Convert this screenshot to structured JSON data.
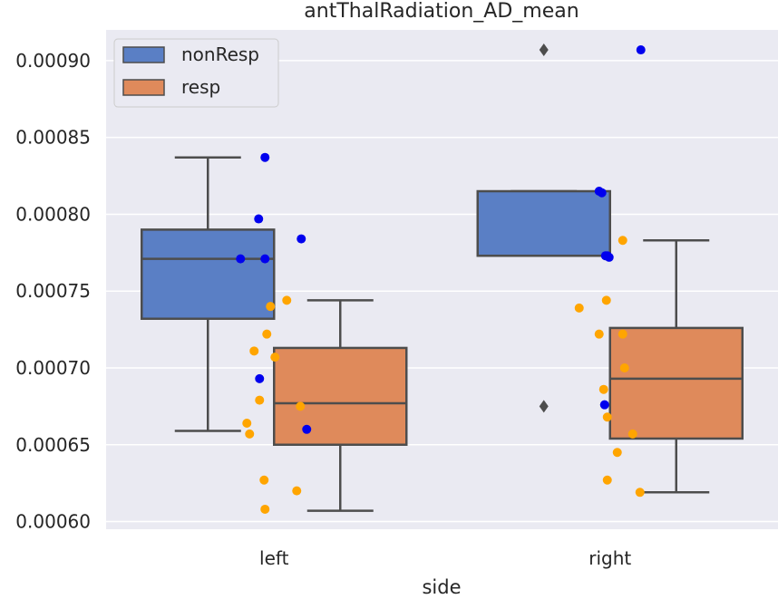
{
  "chart_data": {
    "type": "box",
    "title": "antThalRadiation_AD_mean",
    "xlabel": "side",
    "ylabel": "",
    "categories": [
      "left",
      "right"
    ],
    "ylim": [
      0.000595,
      0.00092
    ],
    "yticks": [
      0.0006,
      0.00065,
      0.0007,
      0.00075,
      0.0008,
      0.00085,
      0.0009
    ],
    "ytick_labels": [
      "0.00060",
      "0.00065",
      "0.00070",
      "0.00075",
      "0.00080",
      "0.00085",
      "0.00090"
    ],
    "grid": true,
    "legend_position": "top-left",
    "colors": {
      "plot_background": "#eaeaf2",
      "grid": "#ffffff",
      "box_line": "#4d4d4d",
      "nonResp_box": "#5a7fc5",
      "resp_box": "#df8a5b",
      "nonResp_points": "#0000ee",
      "resp_points": "#ffa500"
    },
    "series": [
      {
        "name": "nonResp",
        "boxes": [
          {
            "category": "left",
            "whislo": 0.000659,
            "q1": 0.000732,
            "median": 0.000771,
            "q3": 0.00079,
            "whishi": 0.000837,
            "fliers": []
          },
          {
            "category": "right",
            "whislo": 0.000773,
            "q1": 0.000773,
            "median": 0.000773,
            "q3": 0.000815,
            "whishi": 0.000815,
            "fliers": [
              0.000907,
              0.000675
            ]
          }
        ],
        "points": [
          {
            "category": "left",
            "values": [
              0.000837,
              0.000797,
              0.000784,
              0.000771,
              0.000771,
              0.000693,
              0.00066
            ]
          },
          {
            "category": "right",
            "values": [
              0.000907,
              0.000815,
              0.000814,
              0.000773,
              0.000773,
              0.000772,
              0.000676
            ]
          }
        ]
      },
      {
        "name": "resp",
        "boxes": [
          {
            "category": "left",
            "whislo": 0.000607,
            "q1": 0.00065,
            "median": 0.000677,
            "q3": 0.000713,
            "whishi": 0.000744,
            "fliers": []
          },
          {
            "category": "right",
            "whislo": 0.000619,
            "q1": 0.000654,
            "median": 0.000693,
            "q3": 0.000726,
            "whishi": 0.000783,
            "fliers": []
          }
        ],
        "points": [
          {
            "category": "left",
            "values": [
              0.000744,
              0.00074,
              0.000722,
              0.000711,
              0.000707,
              0.000679,
              0.000675,
              0.000664,
              0.000657,
              0.000627,
              0.00062,
              0.000608
            ]
          },
          {
            "category": "right",
            "values": [
              0.000783,
              0.000744,
              0.000739,
              0.000722,
              0.000722,
              0.0007,
              0.000686,
              0.000668,
              0.000657,
              0.000645,
              0.000627,
              0.000619
            ]
          }
        ]
      }
    ]
  }
}
